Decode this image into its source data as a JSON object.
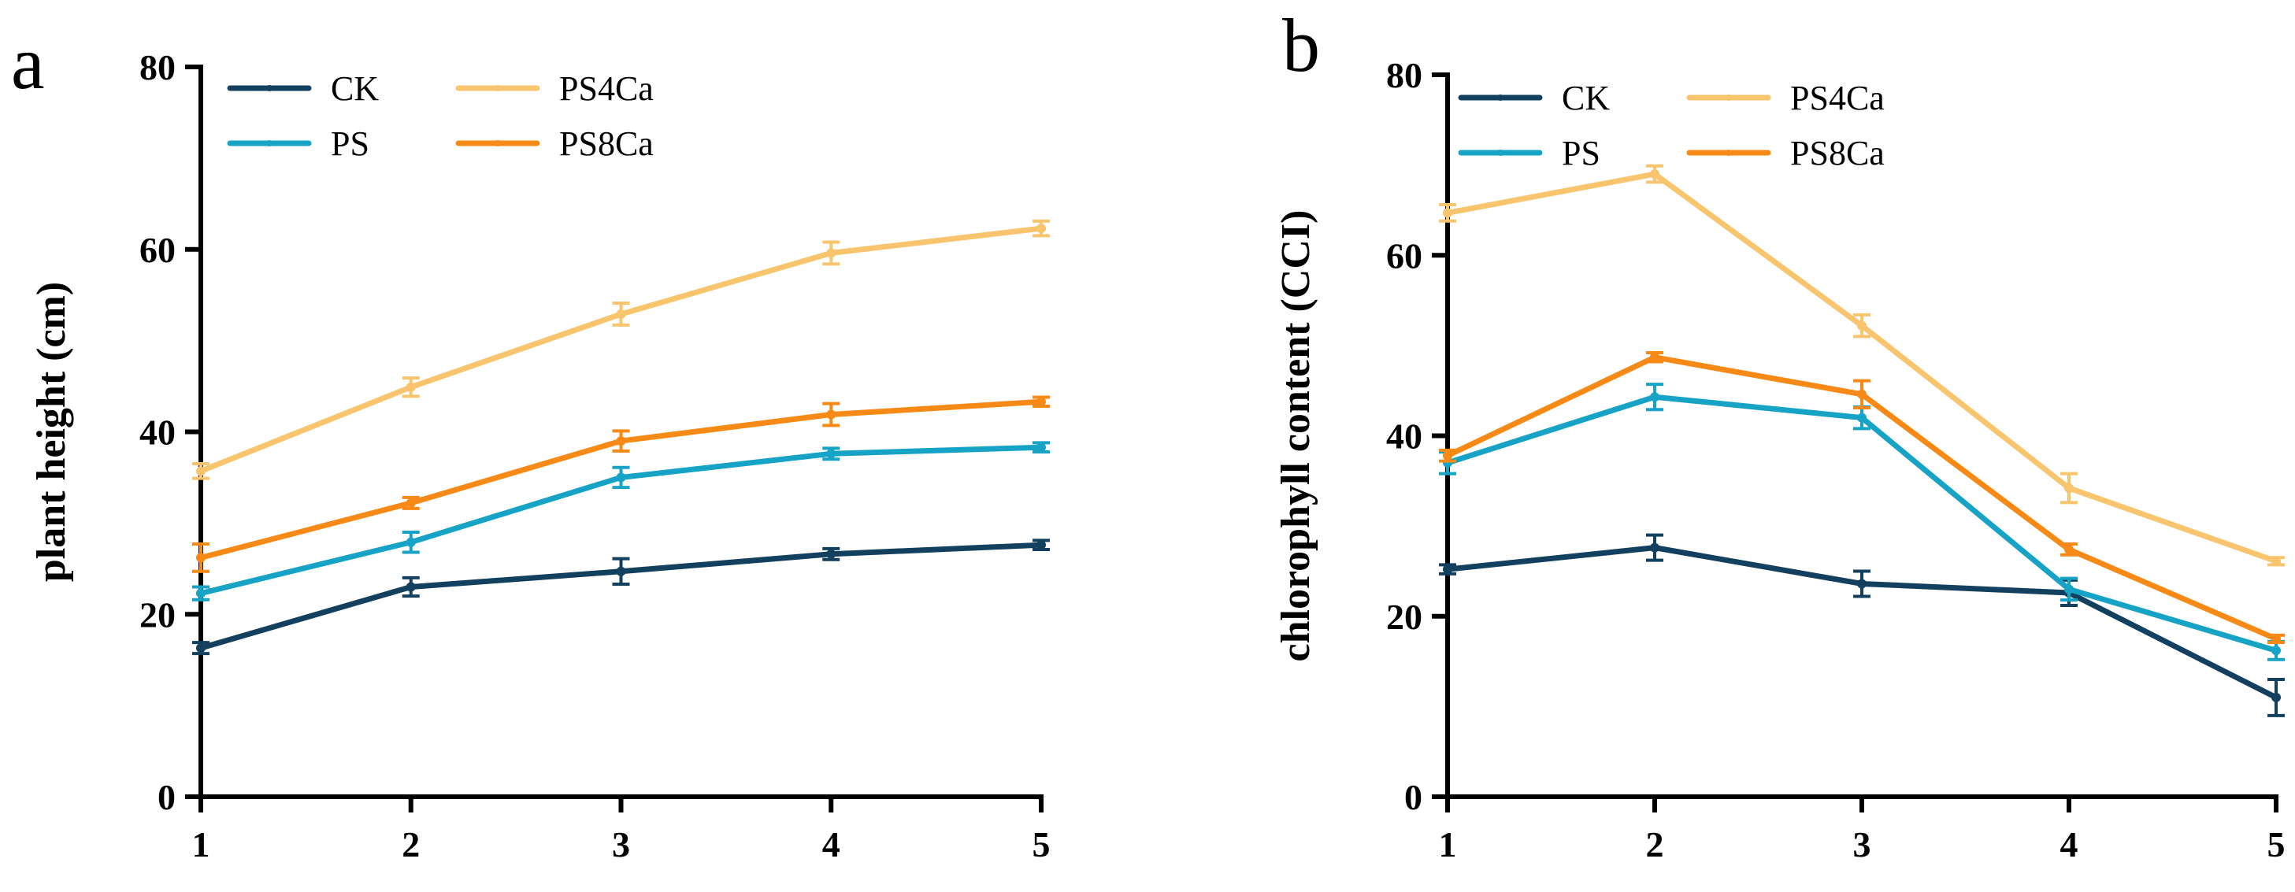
{
  "chart_data": [
    {
      "type": "line",
      "panel_label": "a",
      "title": "",
      "xlabel": "",
      "ylabel": "plant height (cm)",
      "x": [
        1,
        2,
        3,
        4,
        5
      ],
      "x_tick_labels": [
        "1",
        "2",
        "3",
        "4",
        "5"
      ],
      "ylim": [
        0,
        80
      ],
      "y_ticks": [
        0,
        20,
        40,
        60,
        80
      ],
      "y_tick_labels": [
        "0",
        "20",
        "40",
        "60",
        "80"
      ],
      "grid": false,
      "legend_position": "top-left",
      "series": [
        {
          "name": "CK",
          "color": "#12405e",
          "values": [
            16.3,
            23.0,
            24.7,
            26.6,
            27.6
          ],
          "errors": [
            0.6,
            1.0,
            1.4,
            0.6,
            0.5
          ]
        },
        {
          "name": "PS",
          "color": "#17a3c5",
          "values": [
            22.3,
            27.9,
            35.0,
            37.6,
            38.3
          ],
          "errors": [
            0.7,
            1.1,
            1.1,
            0.6,
            0.5
          ]
        },
        {
          "name": "PS4Ca",
          "color": "#f8c56e",
          "values": [
            35.7,
            44.9,
            52.9,
            59.6,
            62.3
          ],
          "errors": [
            0.8,
            1.0,
            1.2,
            1.2,
            0.8
          ]
        },
        {
          "name": "PS8Ca",
          "color": "#f78a17",
          "values": [
            26.2,
            32.2,
            39.0,
            41.9,
            43.3
          ],
          "errors": [
            1.5,
            0.6,
            1.1,
            1.2,
            0.5
          ]
        }
      ]
    },
    {
      "type": "line",
      "panel_label": "b",
      "title": "",
      "xlabel": "",
      "ylabel": "chlorophyll content (CCI)",
      "x": [
        1,
        2,
        3,
        4,
        5
      ],
      "x_tick_labels": [
        "1",
        "2",
        "3",
        "4",
        "5"
      ],
      "ylim": [
        0,
        80
      ],
      "y_ticks": [
        0,
        20,
        40,
        60,
        80
      ],
      "y_tick_labels": [
        "0",
        "20",
        "40",
        "60",
        "80"
      ],
      "grid": false,
      "legend_position": "top-left",
      "series": [
        {
          "name": "CK",
          "color": "#12405e",
          "values": [
            25.2,
            27.6,
            23.6,
            22.6,
            11.0
          ],
          "errors": [
            0.5,
            1.4,
            1.4,
            1.4,
            2.0
          ]
        },
        {
          "name": "PS",
          "color": "#17a3c5",
          "values": [
            37.0,
            44.3,
            42.0,
            23.0,
            16.2
          ],
          "errors": [
            1.2,
            1.4,
            1.2,
            1.2,
            1.0
          ]
        },
        {
          "name": "PS4Ca",
          "color": "#f8c56e",
          "values": [
            64.7,
            69.0,
            52.2,
            34.2,
            26.1
          ],
          "errors": [
            0.9,
            0.9,
            1.2,
            1.6,
            0.4
          ]
        },
        {
          "name": "PS8Ca",
          "color": "#f78a17",
          "values": [
            37.8,
            48.7,
            44.6,
            27.4,
            17.5
          ],
          "errors": [
            0.6,
            0.5,
            1.5,
            0.6,
            0.4
          ]
        }
      ]
    }
  ]
}
